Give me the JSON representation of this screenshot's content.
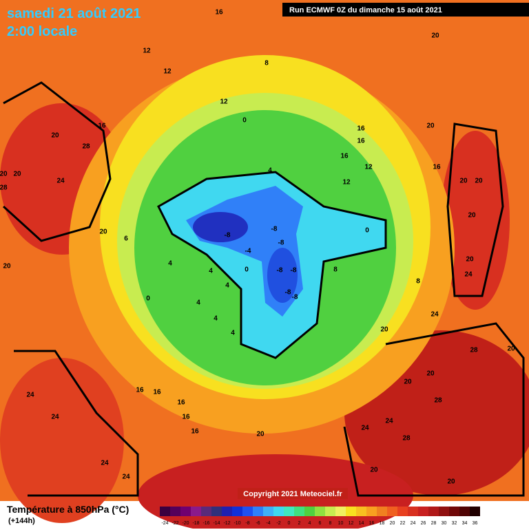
{
  "header": {
    "date": "samedi 21 août 2021",
    "time": "2:00 locale",
    "run": "Run ECMWF 0Z du dimanche 15 août 2021"
  },
  "copyright": "Copyright 2021 Meteociel.fr",
  "legend": {
    "title": "Température à 850hPa (°C)",
    "lead": "(+144h)",
    "values": [
      -24,
      -22,
      -20,
      -18,
      -16,
      -14,
      -12,
      -10,
      -8,
      -6,
      -4,
      -2,
      0,
      2,
      4,
      6,
      8,
      10,
      12,
      14,
      16,
      18,
      20,
      22,
      24,
      26,
      28,
      30,
      32,
      34,
      36
    ],
    "colors": [
      "#3a0040",
      "#55005a",
      "#700070",
      "#8a1a8a",
      "#5a2a7a",
      "#30307a",
      "#2020b0",
      "#1030d8",
      "#2050f0",
      "#3080f8",
      "#40b0f8",
      "#40d8f0",
      "#40e8c0",
      "#40e080",
      "#50d040",
      "#90e040",
      "#c8ec50",
      "#f0f060",
      "#f8e020",
      "#f8c020",
      "#f8a020",
      "#f08020",
      "#f06020",
      "#e84020",
      "#d83020",
      "#c82020",
      "#b01818",
      "#901010",
      "#700808",
      "#500404",
      "#200000"
    ]
  },
  "contour_labels": [
    16,
    20,
    12,
    12,
    8,
    12,
    16,
    20,
    28,
    0,
    16,
    16,
    20,
    16,
    12,
    16,
    4,
    20,
    20,
    24,
    28,
    12,
    20,
    20,
    20,
    20,
    6,
    -8,
    -8,
    -8,
    0,
    -4,
    20,
    4,
    0,
    -8,
    -8,
    8,
    20,
    24,
    8,
    4,
    4,
    0,
    4,
    -8,
    -8,
    4,
    4,
    24,
    20,
    28,
    20,
    20,
    20,
    16,
    16,
    24,
    16,
    28,
    24,
    16,
    24,
    24,
    16,
    28,
    20,
    24,
    20,
    24,
    20
  ]
}
